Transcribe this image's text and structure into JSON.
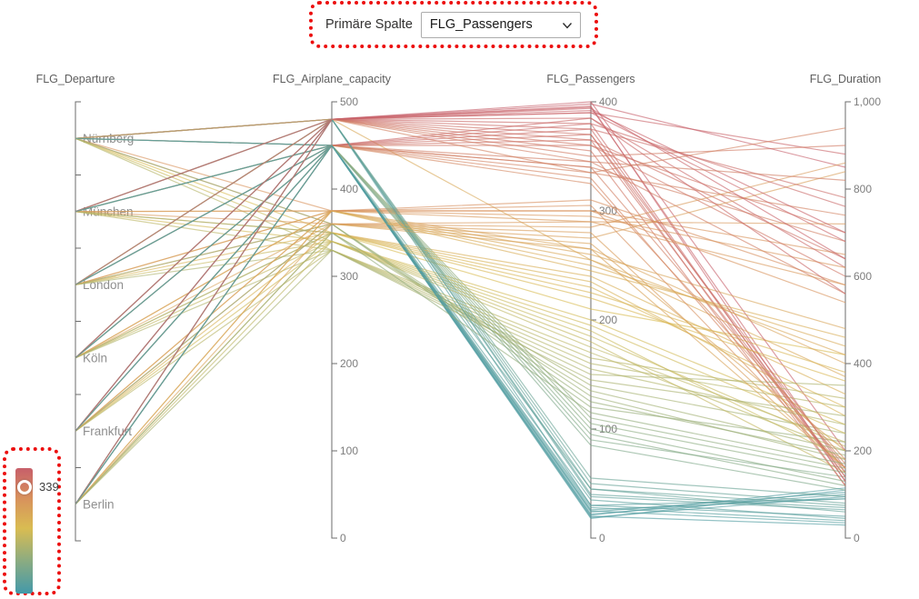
{
  "controls": {
    "primary_column_label": "Primäre Spalte",
    "primary_column_value": "FLG_Passengers"
  },
  "legend": {
    "marker_value": 339,
    "marker_label": "339",
    "annotation_color": "#ec0e0e"
  },
  "chart_data": {
    "type": "parallel-coordinates",
    "color_by": "FLG_Passengers",
    "color_scale": {
      "domain": [
        0,
        400
      ],
      "stops": [
        {
          "value": 0,
          "color": "#4399a9"
        },
        {
          "value": 100,
          "color": "#88ab83"
        },
        {
          "value": 210,
          "color": "#d9bc52"
        },
        {
          "value": 300,
          "color": "#d8935c"
        },
        {
          "value": 400,
          "color": "#c75f6a"
        }
      ]
    },
    "axes": [
      {
        "name": "FLG_Departure",
        "type": "categorical",
        "categories": [
          "Nürnberg",
          "München",
          "London",
          "Köln",
          "Frankfurt",
          "Berlin"
        ]
      },
      {
        "name": "FLG_Airplane_capacity",
        "type": "numeric",
        "min": 0,
        "max": 500,
        "ticks": [
          0,
          100,
          200,
          300,
          400,
          500
        ]
      },
      {
        "name": "FLG_Passengers",
        "type": "numeric",
        "min": 0,
        "max": 400,
        "ticks": [
          0,
          100,
          200,
          300,
          400
        ]
      },
      {
        "name": "FLG_Duration",
        "type": "numeric",
        "min": 0,
        "max": 1000,
        "ticks": [
          0,
          200,
          400,
          600,
          800,
          1000
        ]
      }
    ],
    "record_fields": [
      "FLG_Departure",
      "FLG_Airplane_capacity",
      "FLG_Passengers",
      "FLG_Duration"
    ],
    "records": [
      [
        "Nürnberg",
        480,
        395,
        150
      ],
      [
        "Nürnberg",
        480,
        390,
        880
      ],
      [
        "Nürnberg",
        450,
        360,
        700
      ],
      [
        "Nürnberg",
        480,
        370,
        120
      ],
      [
        "Nürnberg",
        450,
        340,
        680
      ],
      [
        "Nürnberg",
        375,
        300,
        650
      ],
      [
        "Nürnberg",
        360,
        280,
        160
      ],
      [
        "Nürnberg",
        350,
        210,
        420
      ],
      [
        "Nürnberg",
        340,
        190,
        180
      ],
      [
        "Nürnberg",
        330,
        160,
        300
      ],
      [
        "Nürnberg",
        450,
        45,
        60
      ],
      [
        "Nürnberg",
        480,
        30,
        90
      ],
      [
        "Nürnberg",
        450,
        90,
        140
      ],
      [
        "Nürnberg",
        360,
        120,
        220
      ],
      [
        "Nürnberg",
        480,
        255,
        370
      ],
      [
        "Nürnberg",
        450,
        22,
        100
      ],
      [
        "München",
        480,
        400,
        200
      ],
      [
        "München",
        450,
        385,
        620
      ],
      [
        "München",
        480,
        350,
        900
      ],
      [
        "München",
        450,
        330,
        150
      ],
      [
        "München",
        375,
        310,
        580
      ],
      [
        "München",
        360,
        290,
        720
      ],
      [
        "München",
        350,
        240,
        330
      ],
      [
        "München",
        340,
        200,
        260
      ],
      [
        "München",
        330,
        170,
        200
      ],
      [
        "München",
        450,
        35,
        45
      ],
      [
        "München",
        480,
        50,
        80
      ],
      [
        "München",
        450,
        110,
        160
      ],
      [
        "München",
        350,
        140,
        240
      ],
      [
        "München",
        375,
        265,
        400
      ],
      [
        "München",
        480,
        375,
        140
      ],
      [
        "München",
        450,
        18,
        110
      ],
      [
        "London",
        480,
        398,
        850
      ],
      [
        "London",
        450,
        380,
        130
      ],
      [
        "London",
        480,
        365,
        640
      ],
      [
        "London",
        450,
        345,
        560
      ],
      [
        "London",
        375,
        305,
        160
      ],
      [
        "London",
        360,
        275,
        840
      ],
      [
        "London",
        350,
        230,
        300
      ],
      [
        "London",
        340,
        185,
        210
      ],
      [
        "London",
        330,
        150,
        350
      ],
      [
        "London",
        450,
        25,
        35
      ],
      [
        "London",
        480,
        40,
        70
      ],
      [
        "London",
        450,
        95,
        120
      ],
      [
        "London",
        360,
        130,
        180
      ],
      [
        "London",
        375,
        260,
        480
      ],
      [
        "London",
        480,
        335,
        740
      ],
      [
        "London",
        450,
        26,
        90
      ],
      [
        "Köln",
        480,
        392,
        700
      ],
      [
        "Köln",
        450,
        370,
        160
      ],
      [
        "Köln",
        480,
        355,
        120
      ],
      [
        "Köln",
        450,
        335,
        940
      ],
      [
        "Köln",
        375,
        295,
        620
      ],
      [
        "Köln",
        360,
        270,
        200
      ],
      [
        "Köln",
        350,
        225,
        380
      ],
      [
        "Köln",
        340,
        180,
        150
      ],
      [
        "Köln",
        330,
        155,
        260
      ],
      [
        "Köln",
        450,
        30,
        50
      ],
      [
        "Köln",
        480,
        55,
        95
      ],
      [
        "Köln",
        450,
        100,
        130
      ],
      [
        "Köln",
        350,
        135,
        200
      ],
      [
        "Köln",
        375,
        250,
        440
      ],
      [
        "Köln",
        480,
        385,
        560
      ],
      [
        "Köln",
        450,
        24,
        105
      ],
      [
        "Frankfurt",
        480,
        396,
        130
      ],
      [
        "Frankfurt",
        450,
        375,
        780
      ],
      [
        "Frankfurt",
        480,
        360,
        600
      ],
      [
        "Frankfurt",
        450,
        340,
        170
      ],
      [
        "Frankfurt",
        375,
        300,
        540
      ],
      [
        "Frankfurt",
        360,
        285,
        860
      ],
      [
        "Frankfurt",
        350,
        235,
        280
      ],
      [
        "Frankfurt",
        340,
        195,
        240
      ],
      [
        "Frankfurt",
        330,
        165,
        320
      ],
      [
        "Frankfurt",
        450,
        20,
        30
      ],
      [
        "Frankfurt",
        480,
        45,
        75
      ],
      [
        "Frankfurt",
        450,
        105,
        150
      ],
      [
        "Frankfurt",
        360,
        125,
        190
      ],
      [
        "Frankfurt",
        375,
        255,
        420
      ],
      [
        "Frankfurt",
        480,
        390,
        680
      ],
      [
        "Frankfurt",
        450,
        19,
        95
      ],
      [
        "Berlin",
        480,
        394,
        640
      ],
      [
        "Berlin",
        450,
        365,
        140
      ],
      [
        "Berlin",
        480,
        345,
        820
      ],
      [
        "Berlin",
        450,
        325,
        180
      ],
      [
        "Berlin",
        375,
        290,
        580
      ],
      [
        "Berlin",
        360,
        265,
        160
      ],
      [
        "Berlin",
        350,
        220,
        360
      ],
      [
        "Berlin",
        340,
        175,
        220
      ],
      [
        "Berlin",
        330,
        145,
        280
      ],
      [
        "Berlin",
        450,
        28,
        40
      ],
      [
        "Berlin",
        480,
        38,
        65
      ],
      [
        "Berlin",
        450,
        85,
        110
      ],
      [
        "Berlin",
        350,
        115,
        170
      ],
      [
        "Berlin",
        375,
        245,
        460
      ],
      [
        "Berlin",
        480,
        380,
        760
      ],
      [
        "Berlin",
        450,
        21,
        115
      ]
    ],
    "style": {
      "axis_color": "#6b6b6b",
      "tick_label_color": "#7d7d7d",
      "title_color": "#5e5e5e",
      "category_label_color": "#8f8f8f",
      "line_opacity": 0.62,
      "line_width": 1.2
    }
  }
}
